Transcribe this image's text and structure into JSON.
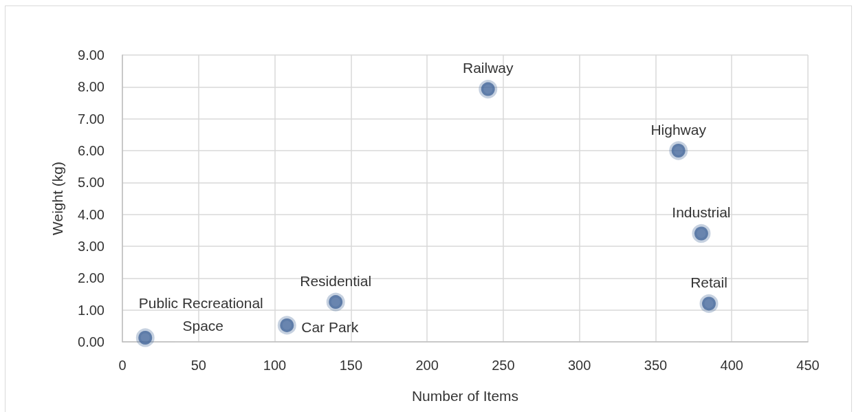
{
  "chart_data": {
    "type": "scatter",
    "xlabel": "Number of Items",
    "ylabel": "Weight (kg)",
    "color": "#44679b",
    "marker": "circle",
    "grid": true,
    "x": [
      15,
      108,
      140,
      240,
      365,
      380,
      385
    ],
    "values": [
      0.13,
      0.52,
      1.25,
      7.93,
      6.0,
      3.4,
      1.2
    ],
    "xlim": [
      0,
      450
    ],
    "xticks": [
      0,
      50,
      100,
      150,
      200,
      250,
      300,
      350,
      400,
      450
    ],
    "ylim": [
      0,
      9
    ],
    "yticks": [
      {
        "value": 0,
        "label": "0.00"
      },
      {
        "value": 1,
        "label": "1.00"
      },
      {
        "value": 2,
        "label": "2.00"
      },
      {
        "value": 3,
        "label": "3.00"
      },
      {
        "value": 4,
        "label": "4.00"
      },
      {
        "value": 5,
        "label": "5.00"
      },
      {
        "value": 6,
        "label": "6.00"
      },
      {
        "value": 7,
        "label": "7.00"
      },
      {
        "value": 8,
        "label": "8.00"
      },
      {
        "value": 9,
        "label": "9.00"
      }
    ],
    "annotations": [
      {
        "text": "Public Recreational Space",
        "x": 15,
        "y": 0.13
      },
      {
        "text": "Car Park",
        "x": 108,
        "y": 0.52
      },
      {
        "text": "Residential",
        "x": 140,
        "y": 1.25
      },
      {
        "text": "Railway",
        "x": 240,
        "y": 7.93
      },
      {
        "text": "Highway",
        "x": 365,
        "y": 6.0
      },
      {
        "text": "Industrial",
        "x": 380,
        "y": 3.4
      },
      {
        "text": "Retail",
        "x": 385,
        "y": 1.2
      }
    ]
  }
}
